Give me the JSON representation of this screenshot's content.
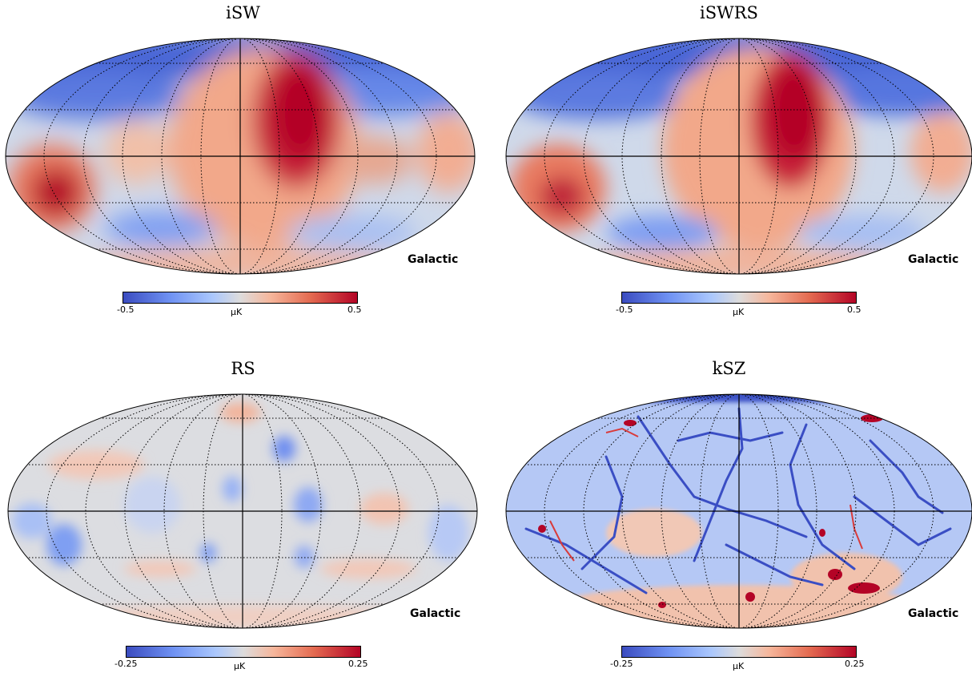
{
  "panels": [
    {
      "title": "iSW",
      "coord_label": "Galactic",
      "cbar": {
        "min": "-0.5",
        "max": "0.5",
        "unit": "μK"
      }
    },
    {
      "title": "iSWRS",
      "coord_label": "Galactic",
      "cbar": {
        "min": "-0.5",
        "max": "0.5",
        "unit": "μK"
      }
    },
    {
      "title": "RS",
      "coord_label": "Galactic",
      "cbar": {
        "min": "-0.25",
        "max": "0.25",
        "unit": "μK"
      }
    },
    {
      "title": "kSZ",
      "coord_label": "Galactic",
      "cbar": {
        "min": "-0.25",
        "max": "0.25",
        "unit": "μK"
      }
    }
  ],
  "colormap": {
    "low": "#3b4cc0",
    "mid": "#dddcdc",
    "high": "#b40426"
  }
}
